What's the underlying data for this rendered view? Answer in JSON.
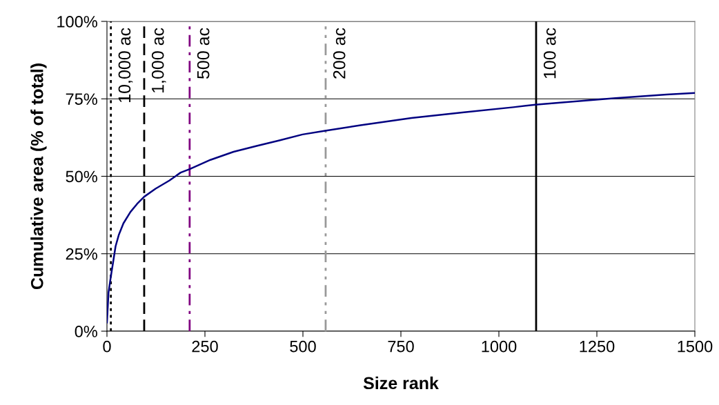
{
  "chart_data": {
    "type": "line",
    "xlabel": "Size rank",
    "ylabel": "Cumulative area (% of total)",
    "xlim": [
      0,
      1500
    ],
    "xticks": [
      0,
      250,
      500,
      750,
      1000,
      1250,
      1500
    ],
    "ylim": [
      0,
      100
    ],
    "yticks": [
      {
        "value": 0,
        "label": "0%"
      },
      {
        "value": 25,
        "label": "25%"
      },
      {
        "value": 50,
        "label": "50%"
      },
      {
        "value": 75,
        "label": "75%"
      },
      {
        "value": 100,
        "label": "100%"
      }
    ],
    "grid": "y",
    "marker": "none",
    "line_style": "solid",
    "series": [
      {
        "color": "#000080",
        "x": [
          0,
          4,
          10,
          16,
          22,
          30,
          42,
          60,
          77,
          95,
          124,
          159,
          188,
          211,
          264,
          323,
          382,
          440,
          499,
          557,
          647,
          777,
          907,
          1037,
          1093,
          1167,
          1297,
          1428,
          1500
        ],
        "values": [
          2.8,
          12.5,
          17.7,
          22.5,
          27.4,
          31,
          34.8,
          38.5,
          41.1,
          43.4,
          46,
          48.6,
          51.2,
          52.3,
          55.3,
          57.9,
          59.8,
          61.6,
          63.5,
          64.7,
          66.5,
          68.8,
          70.6,
          72.3,
          73.1,
          73.9,
          75.2,
          76.4,
          76.9
        ]
      }
    ],
    "ref_lines": [
      {
        "axis": "x",
        "value": 10,
        "label": "10,000 ac",
        "color": "#000000",
        "line_style": "dotted"
      },
      {
        "axis": "x",
        "value": 95,
        "label": "1,000 ac",
        "color": "#000000",
        "line_style": "dashed"
      },
      {
        "axis": "x",
        "value": 211,
        "label": "500 ac",
        "color": "#800080",
        "line_style": "dashdot"
      },
      {
        "axis": "x",
        "value": 558,
        "label": "200 ac",
        "color": "#999999",
        "line_style": "dashdotdot"
      },
      {
        "axis": "x",
        "value": 1095,
        "label": "100 ac",
        "color": "#000000",
        "line_style": "solid"
      }
    ]
  }
}
